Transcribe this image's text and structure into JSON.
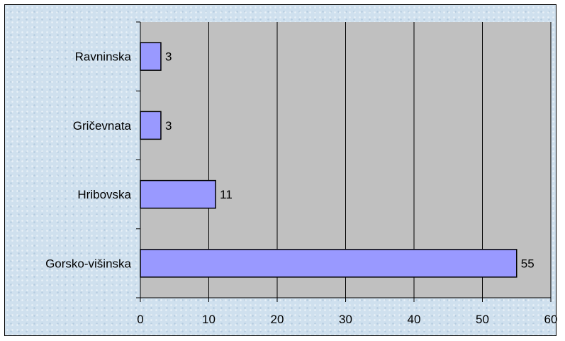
{
  "chart_data": {
    "type": "bar",
    "orientation": "horizontal",
    "categories": [
      "Ravninska",
      "Gričevnata",
      "Hribovska",
      "Gorsko-višinska"
    ],
    "values": [
      3,
      3,
      11,
      55
    ],
    "data_labels": [
      "3",
      "3",
      "11",
      "55"
    ],
    "xlim": [
      0,
      60
    ],
    "x_ticks": [
      "0",
      "10",
      "20",
      "30",
      "40",
      "50",
      "60"
    ],
    "grid": "vertical",
    "legend": "none",
    "title": "",
    "xlabel": "",
    "ylabel": "",
    "colors": {
      "bar_fill": "#9999ff",
      "bar_stroke": "#000000",
      "plot_bg": "#c0c0c0",
      "grid": "#000000"
    }
  }
}
